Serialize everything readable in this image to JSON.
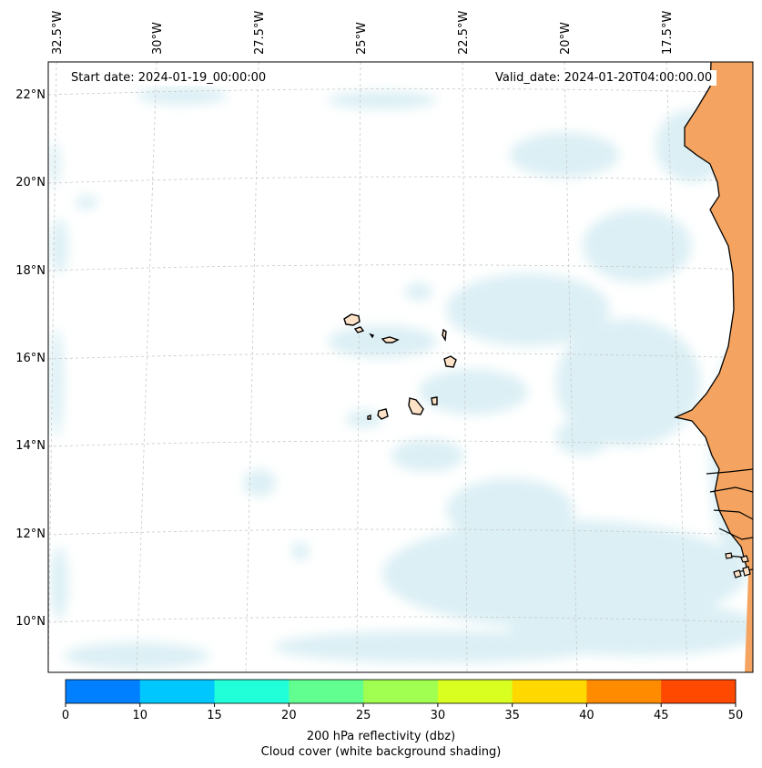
{
  "map": {
    "start_date": "Start date: 2024-01-19_00:00:00",
    "valid_date": "Valid_date: 2024-01-20T04:00:00.00",
    "lat_labels": [
      "22°N",
      "20°N",
      "18°N",
      "16°N",
      "14°N",
      "12°N",
      "10°N"
    ],
    "lon_labels": [
      "32.5°W",
      "30°W",
      "27.5°W",
      "25°W",
      "22.5°W",
      "20°W",
      "17.5°W"
    ],
    "colors": {
      "land": "#f4a460",
      "cloud": "#bfe3ec",
      "coast": "#000000",
      "grid": "#c8c8c8"
    }
  },
  "colorbar": {
    "ticks": [
      "0",
      "10",
      "15",
      "20",
      "25",
      "30",
      "35",
      "40",
      "45",
      "50"
    ],
    "colors": [
      "#0080ff",
      "#00c8ff",
      "#20ffd8",
      "#60ff90",
      "#a0ff50",
      "#d8ff20",
      "#ffd800",
      "#ff8c00",
      "#ff4800"
    ],
    "label_line1": "200 hPa reflectivity (dbz)",
    "label_line2": "Cloud cover (white background shading)"
  }
}
